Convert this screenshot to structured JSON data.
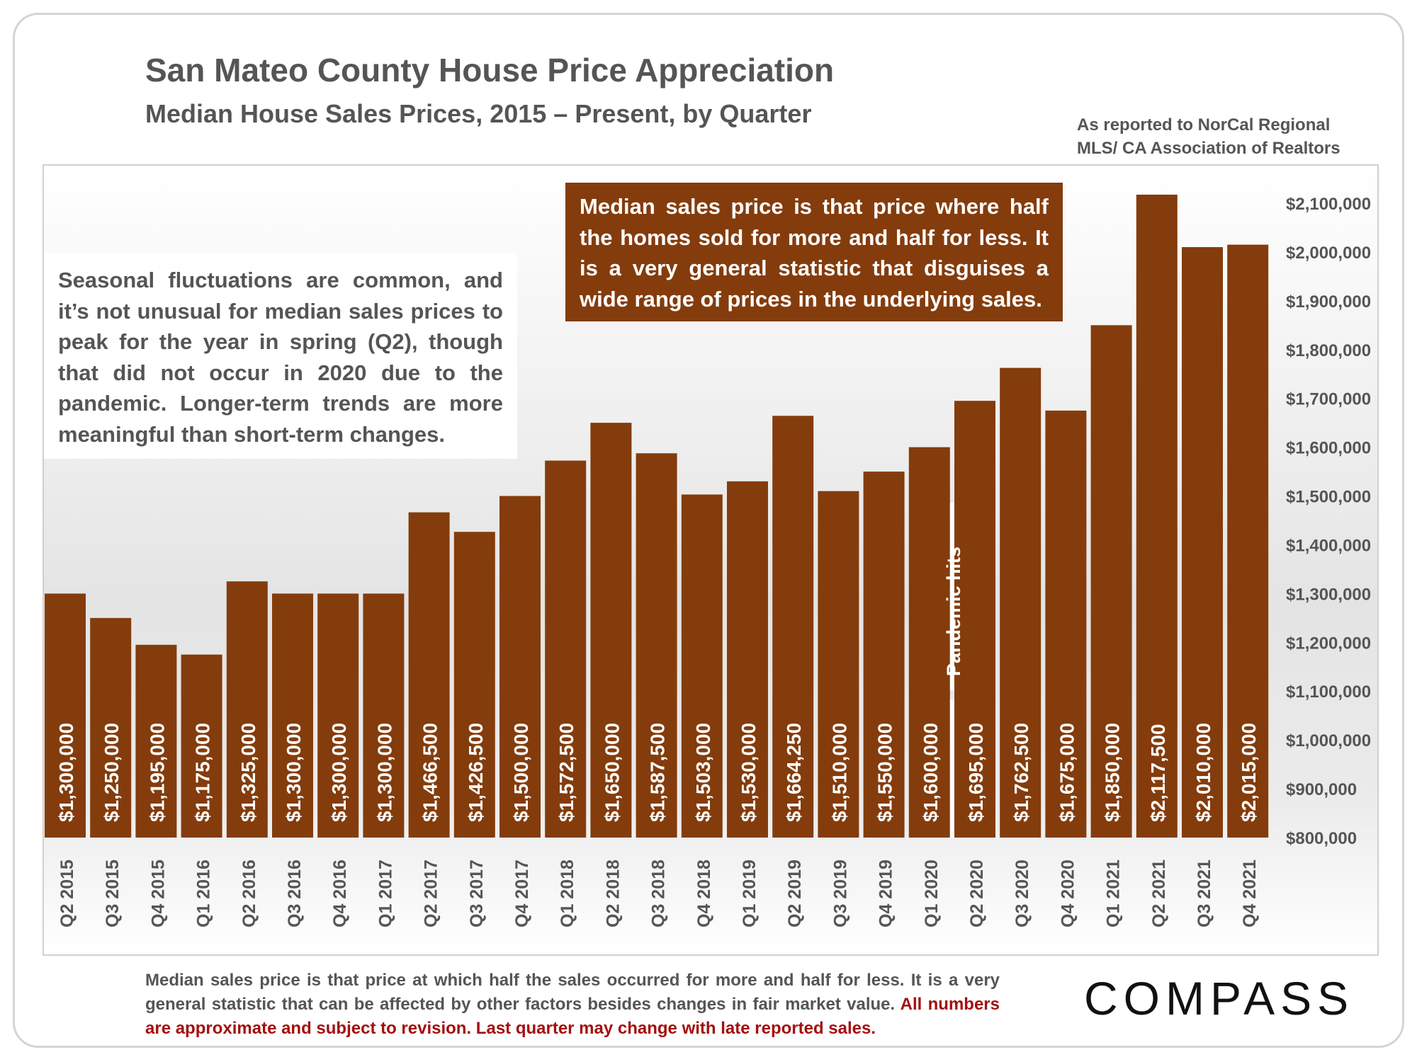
{
  "title": "San Mateo County House Price Appreciation",
  "subtitle": "Median House Sales Prices, 2015 – Present, by Quarter",
  "source_line1": "As reported to NorCal Regional",
  "source_line2": "MLS/ CA Association of Realtors",
  "note_left": "Seasonal fluctuations are common, and it’s not unusual for median sales prices to peak for the year in spring (Q2), though that did not occur in 2020 due to the pandemic. Longer-term trends are more meaningful than short-term changes.",
  "note_top": "Median sales price is that price where half the homes sold for more and half for less. It is a very general statistic that disguises a wide range of prices in the underlying sales.",
  "footer_grey": "Median sales price is that price at which half the sales occurred for more and half for less. It is a very general statistic that can be affected by other factors besides changes in fair market value. ",
  "footer_red": "All numbers are approximate and subject to revision. Last quarter may change with late reported sales.",
  "logo": "COMPASS",
  "colors": {
    "bar": "#843c0c",
    "text": "#555555",
    "footer_red": "#a50e0e"
  },
  "chart_data": {
    "type": "bar",
    "categories": [
      "Q2 2015",
      "Q3 2015",
      "Q4 2015",
      "Q1 2016",
      "Q2 2016",
      "Q3 2016",
      "Q4 2016",
      "Q1 2017",
      "Q2 2017",
      "Q3 2017",
      "Q4 2017",
      "Q1 2018",
      "Q2 2018",
      "Q3 2018",
      "Q4 2018",
      "Q1 2019",
      "Q2 2019",
      "Q3 2019",
      "Q4 2019",
      "Q1 2020",
      "Q2 2020",
      "Q3 2020",
      "Q4 2020",
      "Q1 2021",
      "Q2 2021",
      "Q3 2021",
      "Q4 2021"
    ],
    "values": [
      1300000,
      1250000,
      1195000,
      1175000,
      1325000,
      1300000,
      1300000,
      1300000,
      1466500,
      1426500,
      1500000,
      1572500,
      1650000,
      1587500,
      1503000,
      1530000,
      1664250,
      1510000,
      1550000,
      1600000,
      1695000,
      1762500,
      1675000,
      1850000,
      2117500,
      2010000,
      2015000
    ],
    "value_labels": [
      "$1,300,000",
      "$1,250,000",
      "$1,195,000",
      "$1,175,000",
      "$1,325,000",
      "$1,300,000",
      "$1,300,000",
      "$1,300,000",
      "$1,466,500",
      "$1,426,500",
      "$1,500,000",
      "$1,572,500",
      "$1,650,000",
      "$1,587,500",
      "$1,503,000",
      "$1,530,000",
      "$1,664,250",
      "$1,510,000",
      "$1,550,000",
      "$1,600,000",
      "$1,695,000",
      "$1,762,500",
      "$1,675,000",
      "$1,850,000",
      "$2,117,500",
      "$2,010,000",
      "$2,015,000"
    ],
    "y_ticks": [
      800000,
      900000,
      1000000,
      1100000,
      1200000,
      1300000,
      1400000,
      1500000,
      1600000,
      1700000,
      1800000,
      1900000,
      2000000,
      2100000
    ],
    "y_tick_labels": [
      "$800,000",
      "$900,000",
      "$1,000,000",
      "$1,100,000",
      "$1,200,000",
      "$1,300,000",
      "$1,400,000",
      "$1,500,000",
      "$1,600,000",
      "$1,700,000",
      "$1,800,000",
      "$1,900,000",
      "$2,000,000",
      "$2,100,000"
    ],
    "ylim": [
      800000,
      2100000
    ],
    "y_axis_side": "right",
    "grid": false,
    "annotations": [
      {
        "text": "Pandemic hits",
        "category": "Q1 2020"
      }
    ]
  }
}
